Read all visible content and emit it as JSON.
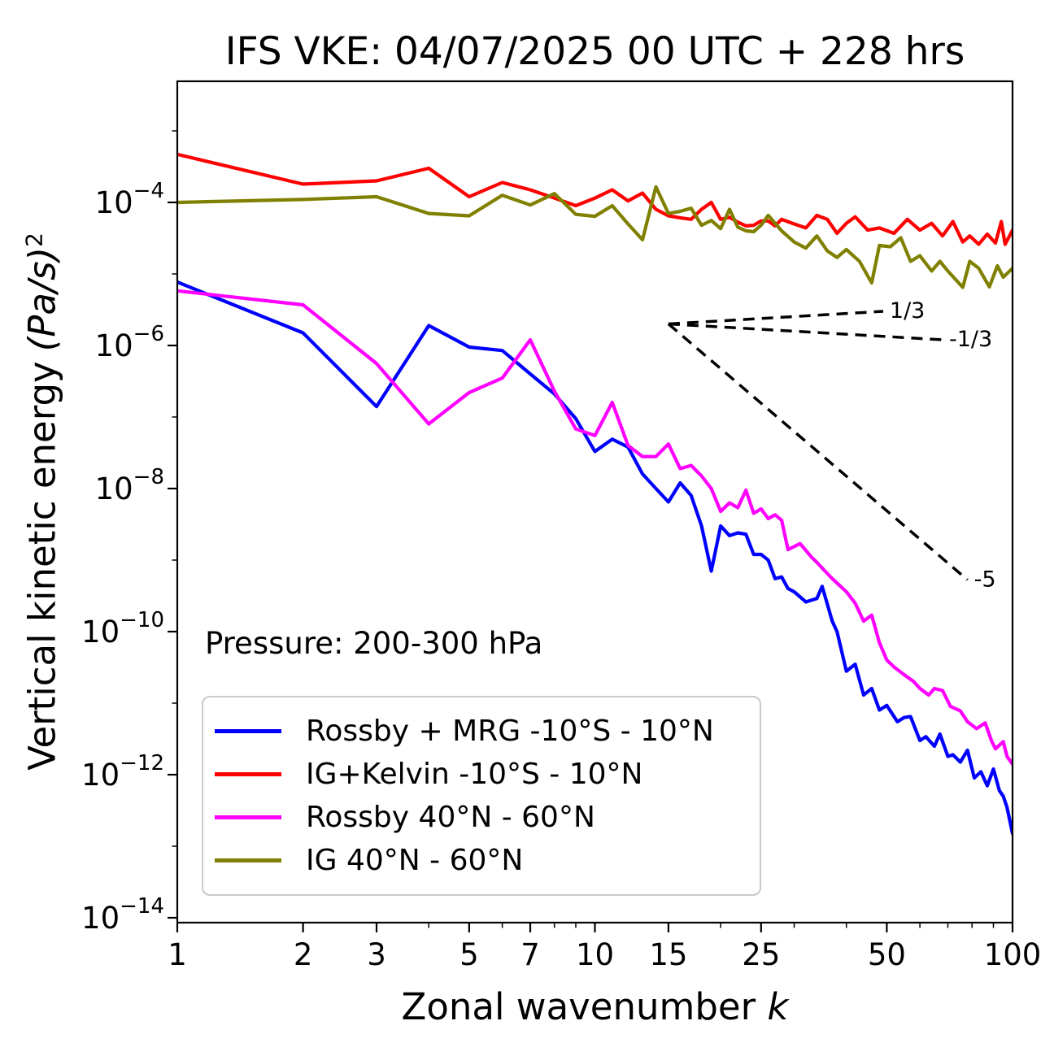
{
  "chart_data": {
    "type": "line",
    "title": "IFS VKE: 04/07/2025 00 UTC + 228 hrs",
    "xlabel": "Zonal wavenumber",
    "xlabel_var": "k",
    "ylabel": "Vertical kinetic energy",
    "ylabel_units": "(Pa/s)",
    "ylabel_units_exp": "2",
    "annotation": "Pressure: 200-300 hPa",
    "xscale": "log",
    "yscale": "log",
    "xlim": [
      1,
      100
    ],
    "ylim": [
      8.5e-15,
      0.0049
    ],
    "grid": false,
    "legend_position": "lower-left",
    "x_ticks": [
      1,
      2,
      3,
      5,
      7,
      10,
      15,
      25,
      50,
      100
    ],
    "x_minor_ticks": [
      4,
      6,
      8,
      9,
      20,
      30,
      40,
      60,
      70,
      80,
      90
    ],
    "y_tick_exponents": [
      -4,
      -6,
      -8,
      -10,
      -12,
      -14
    ],
    "y_minor_tick_exponents": [
      -3,
      -5,
      -7,
      -9,
      -11,
      -13
    ],
    "series": [
      {
        "name": "Rossby + MRG -10°S - 10°N",
        "color": "#0000ff",
        "points": [
          [
            1,
            7.7e-06
          ],
          [
            2,
            1.5e-06
          ],
          [
            3,
            1.4e-07
          ],
          [
            4,
            1.9e-06
          ],
          [
            5,
            9.5e-07
          ],
          [
            6,
            8.5e-07
          ],
          [
            7,
            4e-07
          ],
          [
            8,
            2.1e-07
          ],
          [
            9,
            9.5e-08
          ],
          [
            10,
            3.3e-08
          ],
          [
            11,
            4.9e-08
          ],
          [
            12,
            3.8e-08
          ],
          [
            13,
            1.6e-08
          ],
          [
            14,
            1e-08
          ],
          [
            15,
            6.5e-09
          ],
          [
            16,
            1.2e-08
          ],
          [
            17,
            8e-09
          ],
          [
            18,
            3e-09
          ],
          [
            19,
            7e-10
          ],
          [
            20,
            3e-09
          ],
          [
            21,
            2.2e-09
          ],
          [
            22,
            2.4e-09
          ],
          [
            23,
            2.3e-09
          ],
          [
            24,
            1.2e-09
          ],
          [
            25,
            1.2e-09
          ],
          [
            26,
            1e-09
          ],
          [
            27,
            5.5e-10
          ],
          [
            28,
            5.8e-10
          ],
          [
            29,
            4e-10
          ],
          [
            30,
            3.6e-10
          ],
          [
            32,
            2.6e-10
          ],
          [
            34,
            2.9e-10
          ],
          [
            35,
            4.3e-10
          ],
          [
            37,
            1.4e-10
          ],
          [
            38,
            1e-10
          ],
          [
            40,
            2.8e-11
          ],
          [
            42,
            3.5e-11
          ],
          [
            44,
            1.3e-11
          ],
          [
            46,
            1.6e-11
          ],
          [
            48,
            8e-12
          ],
          [
            50,
            9.3e-12
          ],
          [
            53,
            5.5e-12
          ],
          [
            55,
            6.3e-12
          ],
          [
            57,
            6.5e-12
          ],
          [
            60,
            3e-12
          ],
          [
            62,
            3.4e-12
          ],
          [
            65,
            2.5e-12
          ],
          [
            67,
            3.7e-12
          ],
          [
            70,
            1.8e-12
          ],
          [
            72,
            1.9e-12
          ],
          [
            75,
            1.5e-12
          ],
          [
            78,
            2.2e-12
          ],
          [
            81,
            9e-13
          ],
          [
            84,
            1.1e-12
          ],
          [
            87,
            7e-13
          ],
          [
            90,
            1.2e-12
          ],
          [
            93,
            6e-13
          ],
          [
            95,
            5e-13
          ],
          [
            97,
            3.5e-13
          ],
          [
            100,
            1.5e-13
          ]
        ]
      },
      {
        "name": "IG+Kelvin -10°S - 10°N",
        "color": "#ff0000",
        "points": [
          [
            1,
            0.00047
          ],
          [
            2,
            0.00018
          ],
          [
            3,
            0.0002
          ],
          [
            4,
            0.0003
          ],
          [
            5,
            0.00012
          ],
          [
            6,
            0.00019
          ],
          [
            7,
            0.00015
          ],
          [
            8,
            0.000115
          ],
          [
            9,
            9e-05
          ],
          [
            10,
            0.000115
          ],
          [
            11,
            0.00015
          ],
          [
            12,
            0.000105
          ],
          [
            13,
            0.000135
          ],
          [
            14,
            8e-05
          ],
          [
            15,
            6.5e-05
          ],
          [
            16,
            6.1e-05
          ],
          [
            17,
            5.8e-05
          ],
          [
            18,
            8e-05
          ],
          [
            19,
            0.0001
          ],
          [
            20,
            5.8e-05
          ],
          [
            21,
            6.2e-05
          ],
          [
            22,
            5.3e-05
          ],
          [
            23,
            4.7e-05
          ],
          [
            24,
            4.8e-05
          ],
          [
            25,
            5.5e-05
          ],
          [
            26,
            5.5e-05
          ],
          [
            27,
            4.7e-05
          ],
          [
            28,
            5.8e-05
          ],
          [
            30,
            5e-05
          ],
          [
            32,
            4.4e-05
          ],
          [
            34,
            6.6e-05
          ],
          [
            36,
            5.8e-05
          ],
          [
            38,
            3.7e-05
          ],
          [
            40,
            5.1e-05
          ],
          [
            42,
            6.3e-05
          ],
          [
            45,
            4.1e-05
          ],
          [
            48,
            4.4e-05
          ],
          [
            52,
            3.7e-05
          ],
          [
            56,
            5.8e-05
          ],
          [
            60,
            4.1e-05
          ],
          [
            64,
            5.1e-05
          ],
          [
            68,
            3.4e-05
          ],
          [
            72,
            5.4e-05
          ],
          [
            76,
            2.8e-05
          ],
          [
            79,
            3.4e-05
          ],
          [
            83,
            2.6e-05
          ],
          [
            87,
            3.6e-05
          ],
          [
            91,
            2.7e-05
          ],
          [
            94,
            5.4e-05
          ],
          [
            96,
            2.6e-05
          ],
          [
            100,
            4.1e-05
          ]
        ]
      },
      {
        "name": "Rossby 40°N - 60°N",
        "color": "#ff00ff",
        "points": [
          [
            1,
            5.8e-06
          ],
          [
            2,
            3.7e-06
          ],
          [
            3,
            5.6e-07
          ],
          [
            4,
            8e-08
          ],
          [
            5,
            2.2e-07
          ],
          [
            6,
            3.5e-07
          ],
          [
            7,
            1.2e-06
          ],
          [
            8,
            2.3e-07
          ],
          [
            9,
            6.8e-08
          ],
          [
            10,
            5.5e-08
          ],
          [
            11,
            1.6e-07
          ],
          [
            12,
            4e-08
          ],
          [
            13,
            2.8e-08
          ],
          [
            14,
            2.8e-08
          ],
          [
            15,
            4.2e-08
          ],
          [
            16,
            1.9e-08
          ],
          [
            17,
            2.1e-08
          ],
          [
            18,
            1.5e-08
          ],
          [
            19,
            1e-08
          ],
          [
            20,
            4.8e-09
          ],
          [
            21,
            6.3e-09
          ],
          [
            22,
            5.4e-09
          ],
          [
            23,
            9.5e-09
          ],
          [
            24,
            4.5e-09
          ],
          [
            25,
            5.2e-09
          ],
          [
            26,
            3.8e-09
          ],
          [
            27,
            4.3e-09
          ],
          [
            28,
            3.6e-09
          ],
          [
            29,
            1.4e-09
          ],
          [
            31,
            1.7e-09
          ],
          [
            33,
            1.1e-09
          ],
          [
            34,
            9.3e-10
          ],
          [
            36,
            6.5e-10
          ],
          [
            37,
            5.5e-10
          ],
          [
            40,
            3.6e-10
          ],
          [
            42,
            2.5e-10
          ],
          [
            44,
            1.4e-10
          ],
          [
            46,
            1.7e-10
          ],
          [
            48,
            7e-11
          ],
          [
            50,
            4e-11
          ],
          [
            52,
            3.2e-11
          ],
          [
            55,
            2.5e-11
          ],
          [
            58,
            2e-11
          ],
          [
            60,
            1.6e-11
          ],
          [
            63,
            1.3e-11
          ],
          [
            65,
            1.6e-11
          ],
          [
            68,
            1.5e-11
          ],
          [
            71,
            9e-12
          ],
          [
            75,
            7.8e-12
          ],
          [
            78,
            5.5e-12
          ],
          [
            82,
            4.4e-12
          ],
          [
            86,
            5.3e-12
          ],
          [
            89,
            3e-12
          ],
          [
            91,
            2.3e-12
          ],
          [
            95,
            2.9e-12
          ],
          [
            97,
            1.8e-12
          ],
          [
            100,
            1.4e-12
          ]
        ]
      },
      {
        "name": "IG 40°N - 60°N",
        "color": "#808000",
        "points": [
          [
            1,
            0.0001
          ],
          [
            2,
            0.00011
          ],
          [
            3,
            0.00012
          ],
          [
            4,
            7e-05
          ],
          [
            5,
            6.5e-05
          ],
          [
            6,
            0.000126
          ],
          [
            7,
            9.2e-05
          ],
          [
            8,
            0.000133
          ],
          [
            9,
            6.8e-05
          ],
          [
            10,
            6.4e-05
          ],
          [
            11,
            9e-05
          ],
          [
            12,
            5e-05
          ],
          [
            13,
            3e-05
          ],
          [
            14,
            0.000165
          ],
          [
            15,
            7e-05
          ],
          [
            16,
            7.5e-05
          ],
          [
            17,
            8.3e-05
          ],
          [
            18,
            4.8e-05
          ],
          [
            19,
            5.6e-05
          ],
          [
            20,
            4.3e-05
          ],
          [
            21,
            8e-05
          ],
          [
            22,
            4.5e-05
          ],
          [
            23,
            4e-05
          ],
          [
            24,
            3.9e-05
          ],
          [
            25,
            4.8e-05
          ],
          [
            26,
            6.6e-05
          ],
          [
            28,
            4e-05
          ],
          [
            30,
            2.8e-05
          ],
          [
            32,
            2.3e-05
          ],
          [
            34,
            3.4e-05
          ],
          [
            36,
            2.1e-05
          ],
          [
            38,
            1.7e-05
          ],
          [
            40,
            2.2e-05
          ],
          [
            43,
            1.5e-05
          ],
          [
            46,
            7.5e-06
          ],
          [
            48,
            2.5e-05
          ],
          [
            51,
            2.4e-05
          ],
          [
            54,
            3.2e-05
          ],
          [
            57,
            1.5e-05
          ],
          [
            60,
            1.8e-05
          ],
          [
            64,
            1.1e-05
          ],
          [
            67,
            1.5e-05
          ],
          [
            70,
            1.1e-05
          ],
          [
            76,
            6.5e-06
          ],
          [
            79,
            1.5e-05
          ],
          [
            83,
            1.2e-05
          ],
          [
            88,
            6.6e-06
          ],
          [
            92,
            1.3e-05
          ],
          [
            95,
            9e-06
          ],
          [
            100,
            1.2e-05
          ]
        ]
      }
    ],
    "reference_lines": [
      {
        "label": "1/3",
        "slope": 0.333,
        "points": [
          [
            15,
            2e-06
          ],
          [
            49,
            3e-06
          ]
        ]
      },
      {
        "label": "-1/3",
        "slope": -0.333,
        "points": [
          [
            15,
            2e-06
          ],
          [
            68,
            1.2e-06
          ]
        ]
      },
      {
        "label": "-5",
        "slope": -5,
        "points": [
          [
            15,
            2e-06
          ],
          [
            78,
            5.3e-10
          ]
        ]
      }
    ]
  }
}
